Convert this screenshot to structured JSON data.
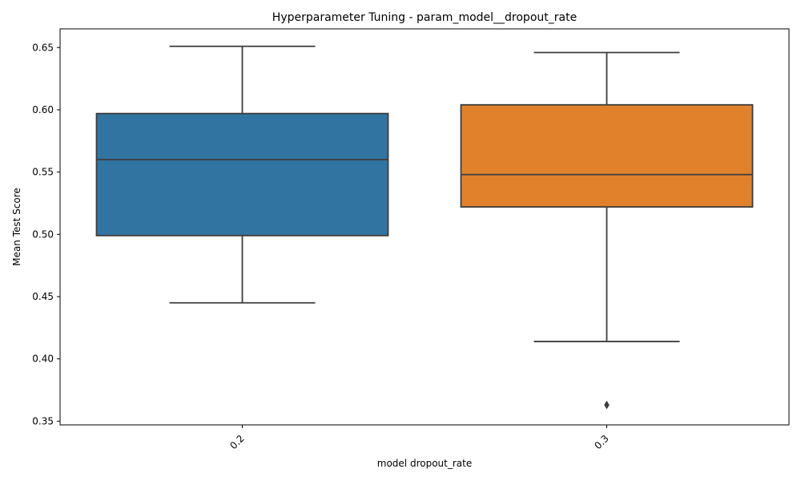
{
  "chart_data": {
    "type": "box",
    "title": "Hyperparameter Tuning - param_model__dropout_rate",
    "xlabel": "model dropout_rate",
    "ylabel": "Mean Test Score",
    "ylim": [
      0.347,
      0.665
    ],
    "yticks": [
      "0.35",
      "0.40",
      "0.45",
      "0.50",
      "0.55",
      "0.60",
      "0.65"
    ],
    "ytick_values": [
      0.35,
      0.4,
      0.45,
      0.5,
      0.55,
      0.6,
      0.65
    ],
    "categories": [
      "0.2",
      "0.3"
    ],
    "boxes": [
      {
        "category": "0.2",
        "whisker_low": 0.445,
        "q1": 0.499,
        "median": 0.56,
        "q3": 0.597,
        "whisker_high": 0.651,
        "outliers": [],
        "color": "#3274a1"
      },
      {
        "category": "0.3",
        "whisker_low": 0.414,
        "q1": 0.522,
        "median": 0.548,
        "q3": 0.604,
        "whisker_high": 0.646,
        "outliers": [
          0.363
        ],
        "color": "#e1812c"
      }
    ],
    "line_color": "#3d3d3d",
    "grid": false,
    "xtick_rotation": 45
  }
}
